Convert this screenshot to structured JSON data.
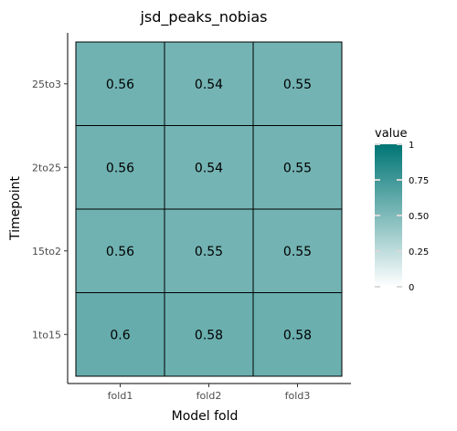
{
  "chart_data": {
    "type": "heatmap",
    "title": "jsd_peaks_nobias",
    "xlabel": "Model fold",
    "ylabel": "Timepoint",
    "x_categories": [
      "fold1",
      "fold2",
      "fold3"
    ],
    "y_categories": [
      "1to15",
      "15to2",
      "2to25",
      "25to3"
    ],
    "values": [
      [
        0.6,
        0.58,
        0.58
      ],
      [
        0.56,
        0.55,
        0.55
      ],
      [
        0.56,
        0.54,
        0.55
      ],
      [
        0.56,
        0.54,
        0.55
      ]
    ],
    "value_labels": [
      [
        "0.6",
        "0.58",
        "0.58"
      ],
      [
        "0.56",
        "0.55",
        "0.55"
      ],
      [
        "0.56",
        "0.54",
        "0.55"
      ],
      [
        "0.56",
        "0.54",
        "0.55"
      ]
    ],
    "color_scale": {
      "low_color": "#ffffff",
      "high_color": "#007575",
      "range": [
        0,
        1
      ]
    },
    "legend": {
      "title": "value",
      "ticks": [
        1,
        0.75,
        0.5,
        0.25,
        0
      ],
      "tick_labels": [
        "1",
        "0.75",
        "0.50",
        "0.25",
        "0"
      ],
      "placement": "right"
    },
    "grid": false
  }
}
